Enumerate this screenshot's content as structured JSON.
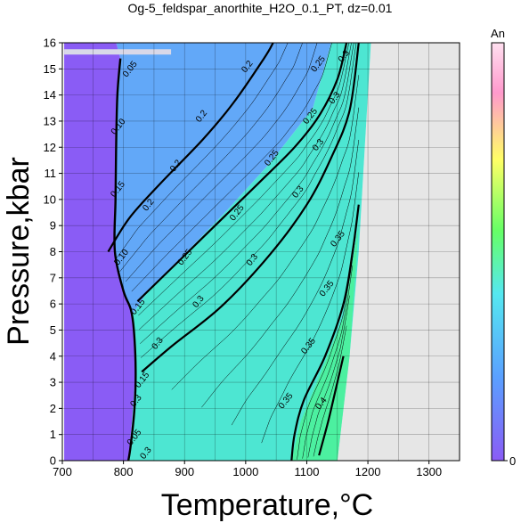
{
  "chart_data": {
    "type": "contour",
    "title": "Og-5_feldspar_anorthite_H2O_0.1_PT, dz=0.01",
    "xlabel": "Temperature,°C",
    "ylabel": "Pressure,kbar",
    "xlim": [
      700,
      1350
    ],
    "ylim": [
      0,
      16
    ],
    "xticks": [
      700,
      800,
      900,
      1000,
      1100,
      1200,
      1300
    ],
    "yticks": [
      0,
      1,
      2,
      3,
      4,
      5,
      6,
      7,
      8,
      9,
      10,
      11,
      12,
      13,
      14,
      15,
      16
    ],
    "grid": true,
    "colorbar": {
      "label": "An",
      "min": 0,
      "max_label": "",
      "min_label": "0",
      "colors": [
        "#8a5cf5",
        "#5aa0ff",
        "#55e8f0",
        "#66ff66",
        "#ffff66",
        "#ff99cc",
        "#ffe0f0"
      ]
    },
    "region_colors": {
      "low": "#8a5cf5",
      "mid": "#62a8f8",
      "high": "#4de6d2",
      "top": "#4cf0a0",
      "no_data": "#e6e6e6"
    },
    "bold_contours": [
      {
        "level": 0.2,
        "label": "0.2",
        "points": [
          [
            775,
            8.0
          ],
          [
            810,
            9.3
          ],
          [
            860,
            10.6
          ],
          [
            930,
            12.3
          ],
          [
            980,
            13.7
          ],
          [
            1030,
            15.4
          ],
          [
            1045,
            16.0
          ]
        ]
      },
      {
        "level": 0.25,
        "label": "0.25",
        "points": [
          [
            823,
            6.1
          ],
          [
            880,
            7.4
          ],
          [
            950,
            9.0
          ],
          [
            1020,
            10.6
          ],
          [
            1080,
            12.0
          ],
          [
            1120,
            13.2
          ],
          [
            1150,
            14.6
          ],
          [
            1165,
            16.0
          ]
        ]
      },
      {
        "level": 0.3,
        "label": "0.3",
        "points": [
          [
            830,
            3.4
          ],
          [
            880,
            4.4
          ],
          [
            960,
            5.9
          ],
          [
            1040,
            7.9
          ],
          [
            1100,
            9.8
          ],
          [
            1140,
            11.6
          ],
          [
            1170,
            13.4
          ],
          [
            1185,
            16.0
          ]
        ]
      },
      {
        "level": 0.35,
        "label": "0.35",
        "points": [
          [
            1075,
            0.0
          ],
          [
            1080,
            1.0
          ],
          [
            1095,
            2.3
          ],
          [
            1130,
            4.0
          ],
          [
            1160,
            6.0
          ],
          [
            1175,
            8.0
          ],
          [
            1185,
            9.8
          ]
        ]
      },
      {
        "level": 0.4,
        "label": "0.4",
        "points": [
          [
            1120,
            0.2
          ],
          [
            1135,
            1.5
          ],
          [
            1150,
            3.0
          ],
          [
            1160,
            4.0
          ]
        ]
      }
    ],
    "phase_boundary": [
      [
        795,
        15.4
      ],
      [
        790,
        14.0
      ],
      [
        788,
        12.0
      ],
      [
        787,
        10.0
      ],
      [
        786,
        8.0
      ],
      [
        800,
        6.5
      ],
      [
        812,
        5.8
      ],
      [
        817,
        5.0
      ],
      [
        820,
        3.5
      ],
      [
        818,
        2.0
      ],
      [
        812,
        0.6
      ],
      [
        808,
        0.0
      ]
    ],
    "labels": [
      {
        "text": "0.2",
        "x": 1002,
        "y": 15.1
      },
      {
        "text": "0.2",
        "x": 927,
        "y": 13.2
      },
      {
        "text": "0.2",
        "x": 885,
        "y": 11.3
      },
      {
        "text": "0.2",
        "x": 840,
        "y": 9.8
      },
      {
        "text": "0.25",
        "x": 1118,
        "y": 15.2
      },
      {
        "text": "0.25",
        "x": 1105,
        "y": 13.2
      },
      {
        "text": "0.25",
        "x": 1042,
        "y": 11.6
      },
      {
        "text": "0.25",
        "x": 985,
        "y": 9.5
      },
      {
        "text": "0.25",
        "x": 900,
        "y": 7.8
      },
      {
        "text": "0.3",
        "x": 1160,
        "y": 15.5
      },
      {
        "text": "0.3",
        "x": 1145,
        "y": 13.9
      },
      {
        "text": "0.3",
        "x": 1118,
        "y": 12.1
      },
      {
        "text": "0.3",
        "x": 1085,
        "y": 10.3
      },
      {
        "text": "0.3",
        "x": 1010,
        "y": 7.7
      },
      {
        "text": "0.3",
        "x": 922,
        "y": 6.1
      },
      {
        "text": "0.3",
        "x": 855,
        "y": 4.5
      },
      {
        "text": "0.3",
        "x": 820,
        "y": 2.3
      },
      {
        "text": "0.3",
        "x": 836,
        "y": 0.3
      },
      {
        "text": "0.35",
        "x": 1150,
        "y": 8.5
      },
      {
        "text": "0.35",
        "x": 1132,
        "y": 6.6
      },
      {
        "text": "0.35",
        "x": 1102,
        "y": 4.4
      },
      {
        "text": "0.35",
        "x": 1065,
        "y": 2.3
      },
      {
        "text": "0.4",
        "x": 1123,
        "y": 2.2
      },
      {
        "text": "0.05",
        "x": 810,
        "y": 15.0
      },
      {
        "text": "0.10",
        "x": 791,
        "y": 12.8
      },
      {
        "text": "0.15",
        "x": 790,
        "y": 10.4
      },
      {
        "text": "0.10",
        "x": 796,
        "y": 7.8
      },
      {
        "text": "0.15",
        "x": 823,
        "y": 5.9
      },
      {
        "text": "0.15",
        "x": 830,
        "y": 3.1
      },
      {
        "text": "0.05",
        "x": 817,
        "y": 0.9
      }
    ]
  }
}
